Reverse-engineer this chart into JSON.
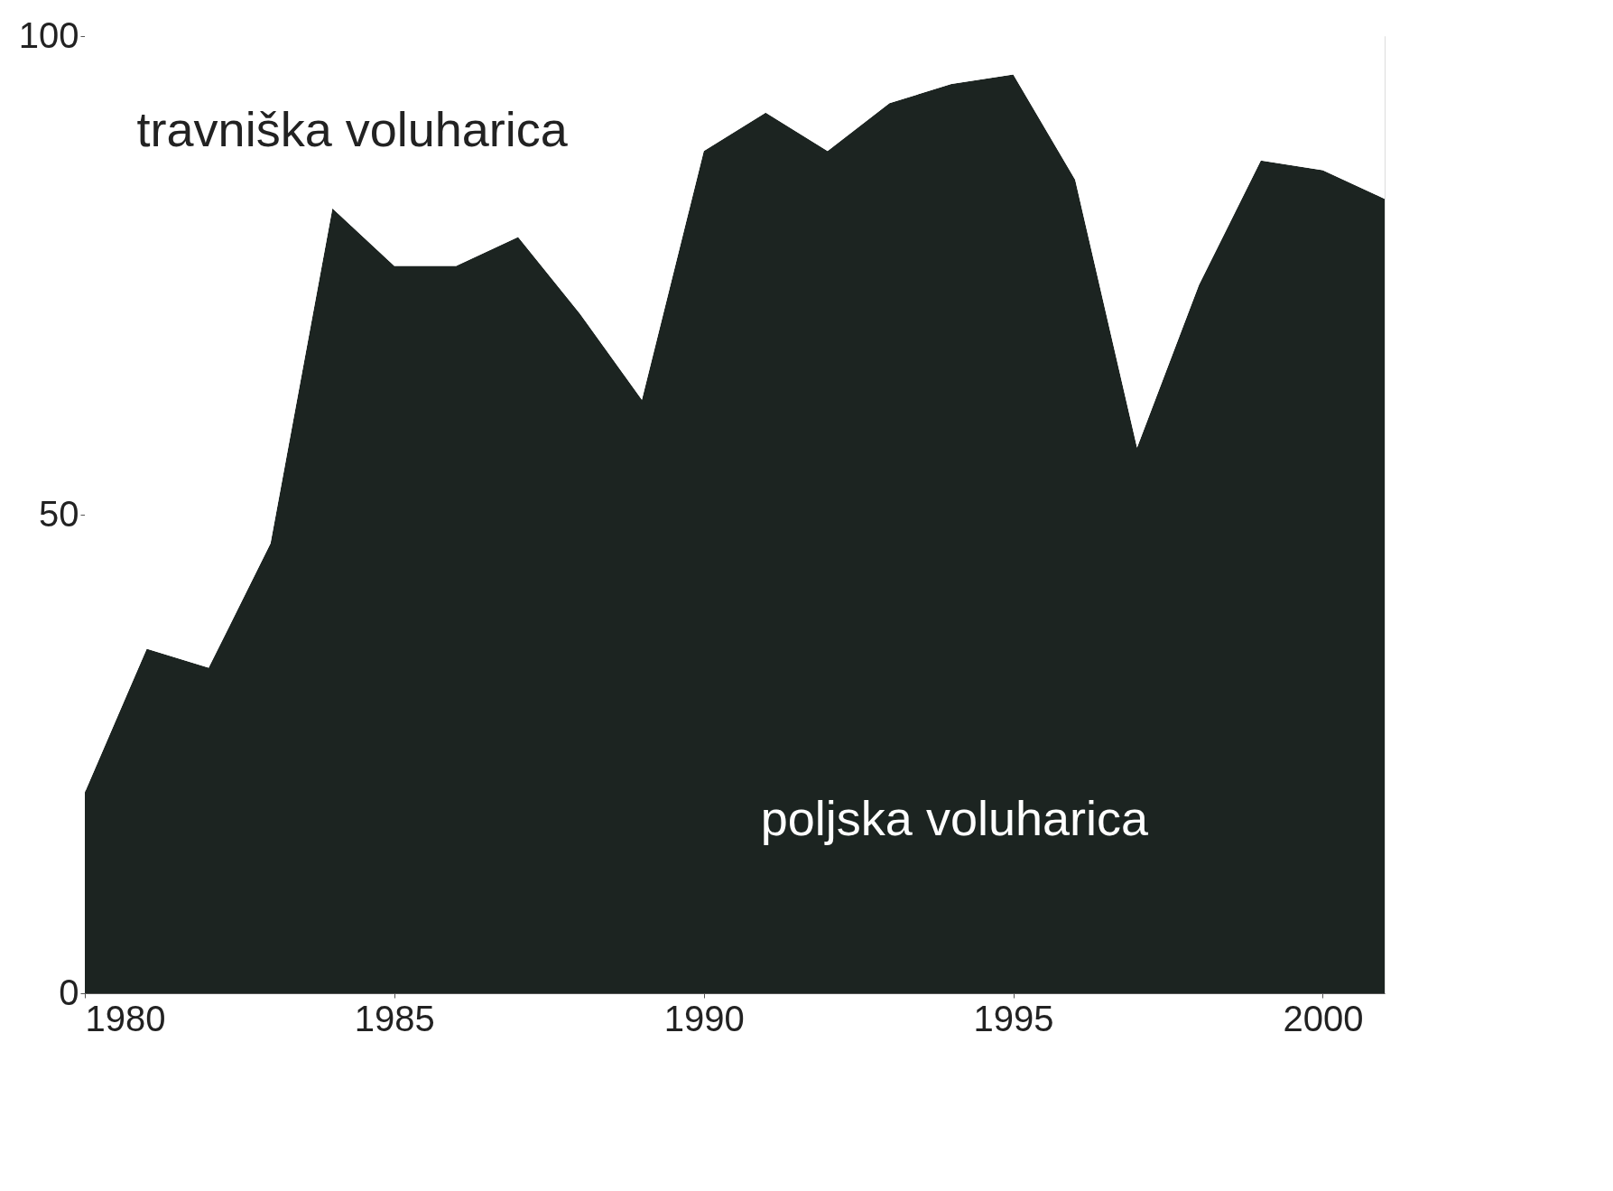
{
  "chart_data": {
    "type": "area",
    "stacked": true,
    "x": [
      1980,
      1981,
      1982,
      1983,
      1984,
      1985,
      1986,
      1987,
      1988,
      1989,
      1990,
      1991,
      1992,
      1993,
      1994,
      1995,
      1996,
      1997,
      1998,
      1999,
      2000,
      2001
    ],
    "series": [
      {
        "name": "poljska voluharica",
        "color": "#1c2421",
        "values": [
          21,
          36,
          34,
          47,
          82,
          76,
          76,
          79,
          71,
          62,
          88,
          92,
          88,
          93,
          95,
          96,
          85,
          57,
          74,
          87,
          86,
          83
        ]
      },
      {
        "name": "travniška voluharica",
        "color": "#ffffff",
        "values": [
          79,
          64,
          66,
          53,
          18,
          24,
          24,
          21,
          29,
          38,
          12,
          8,
          12,
          7,
          5,
          4,
          15,
          43,
          26,
          13,
          14,
          17
        ]
      }
    ],
    "xlim": [
      1980,
      2001
    ],
    "xticks": [
      1980,
      1985,
      1990,
      1995,
      2000
    ],
    "ylim": [
      0,
      100
    ],
    "yticks": [
      0,
      50,
      100
    ],
    "grid": false,
    "legend": false
  }
}
